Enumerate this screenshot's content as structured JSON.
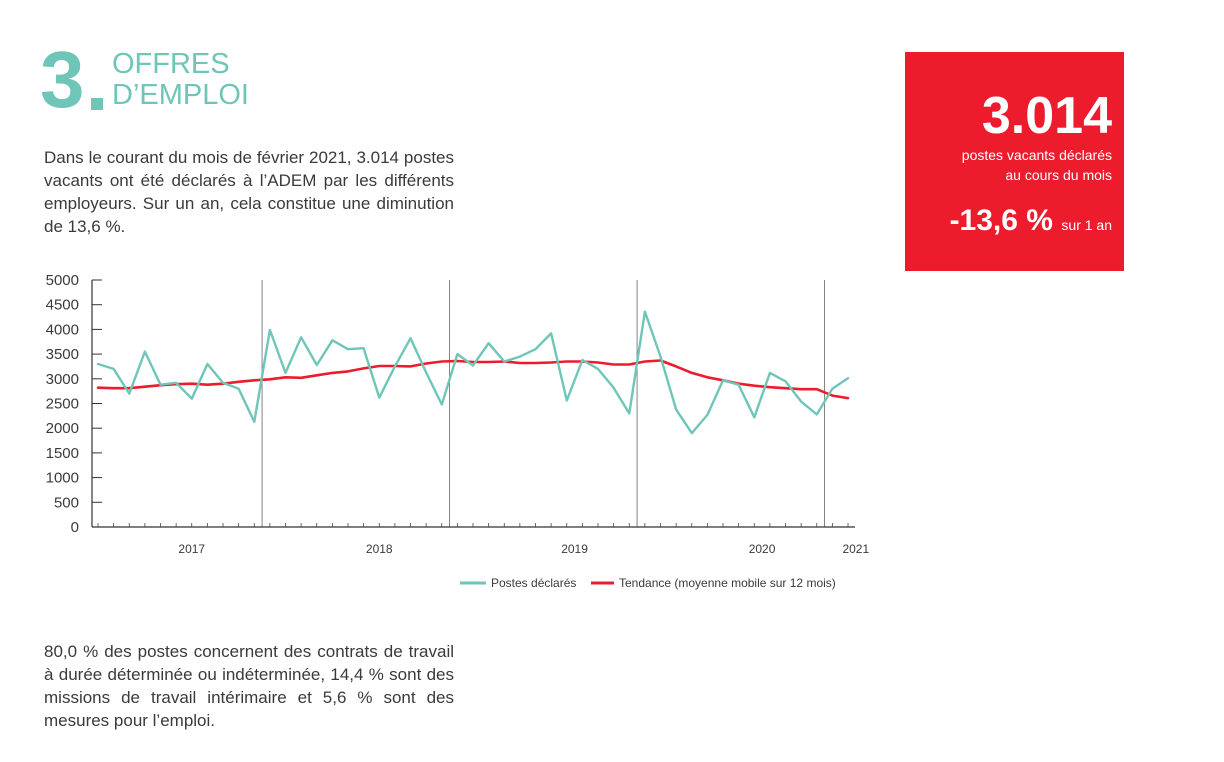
{
  "section": {
    "number": "3",
    "title_line1": "OFFRES",
    "title_line2": "D’EMPLOI"
  },
  "intro_text": "Dans le courant du mois de février 2021, 3.014 postes vacants ont été déclarés à l’ADEM par les différents employeurs. Sur un an, cela constitue une diminution de 13,6 %.",
  "contracts_text": "80,0 % des postes concernent des contrats de travail à durée déterminée ou indéterminée, 14,4 % sont des missions de travail intérimaire et 5,6 % sont des mesures pour l’emploi.",
  "kpi": {
    "value": "3.014",
    "caption_line1": "postes vacants déclarés",
    "caption_line2": "au cours du mois",
    "change": "-13,6 %",
    "change_suffix": "sur 1 an"
  },
  "colors": {
    "accent_teal": "#6fc6b8",
    "accent_red": "#ec1c2d",
    "text": "#3a3a3a"
  },
  "chart_data": {
    "type": "line",
    "ylim": [
      0,
      5000
    ],
    "yticks": [
      0,
      500,
      1000,
      1500,
      2000,
      2500,
      3000,
      3500,
      4000,
      4500,
      5000
    ],
    "x_labels": [
      {
        "label": "2017",
        "index": 6
      },
      {
        "label": "2018",
        "index": 18
      },
      {
        "label": "2019",
        "index": 30.5
      },
      {
        "label": "2020",
        "index": 42.5
      },
      {
        "label": "2021",
        "index": 48.5
      }
    ],
    "year_dividers": [
      10.5,
      22.5,
      34.5,
      46.5
    ],
    "grid": false,
    "legend_position": "bottom-right",
    "series": [
      {
        "name": "Postes déclarés",
        "color": "#6fc6b8",
        "values": [
          3300,
          3200,
          2700,
          3550,
          2880,
          2920,
          2600,
          3300,
          2920,
          2800,
          2130,
          3990,
          3120,
          3840,
          3280,
          3780,
          3600,
          3620,
          2620,
          3250,
          3820,
          3130,
          2480,
          3500,
          3270,
          3720,
          3350,
          3450,
          3600,
          3920,
          2560,
          3380,
          3200,
          2820,
          2300,
          4360,
          3450,
          2380,
          1900,
          2270,
          2970,
          2880,
          2220,
          3120,
          2950,
          2540,
          2280,
          2800,
          3014
        ]
      },
      {
        "name": "Tendance (moyenne mobile sur 12 mois)",
        "color": "#ec1c2d",
        "values": [
          2820,
          2810,
          2810,
          2840,
          2870,
          2890,
          2900,
          2880,
          2900,
          2940,
          2970,
          2990,
          3030,
          3020,
          3070,
          3120,
          3150,
          3210,
          3260,
          3260,
          3250,
          3310,
          3350,
          3360,
          3340,
          3340,
          3350,
          3320,
          3320,
          3330,
          3350,
          3350,
          3330,
          3290,
          3290,
          3350,
          3370,
          3250,
          3120,
          3030,
          2970,
          2900,
          2860,
          2830,
          2810,
          2790,
          2790,
          2660,
          2610
        ]
      }
    ]
  }
}
